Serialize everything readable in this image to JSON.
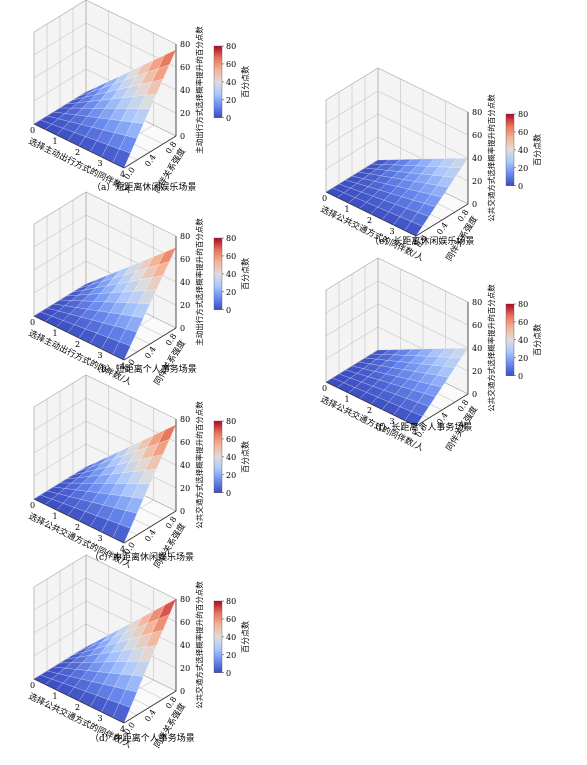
{
  "chart_data": [
    {
      "type": "surface",
      "caption": "（a）短距离休闲娱乐场景",
      "xlabel": "选择主动出行方式的同伴数/人",
      "ylabel": "同伴关系强度",
      "zlabel": "主动出行方式选择概率提升的百分点数",
      "colorbar_label": "百分点数",
      "x_ticks": [
        "0",
        "1",
        "2",
        "3",
        "4"
      ],
      "y_ticks": [
        "0.0",
        "0.4",
        "0.8"
      ],
      "z_ticks": [
        "0",
        "20",
        "40",
        "60",
        "80"
      ],
      "colorbar_ticks": [
        "0",
        "20",
        "40",
        "60",
        "80"
      ],
      "xlim": [
        0,
        4
      ],
      "ylim": [
        0,
        1
      ],
      "zlim": [
        0,
        80
      ],
      "max_value": 75,
      "colormap": [
        "#3b4cc0",
        "#6a8bef",
        "#aac7fd",
        "#dddddd",
        "#f6b396",
        "#e7745b",
        "#b40426"
      ]
    },
    {
      "type": "surface",
      "caption": "（b）短距离个人事务场景",
      "xlabel": "选择主动出行方式的同伴数/人",
      "ylabel": "同伴关系强度",
      "zlabel": "主动出行方式选择概率提升的百分点数",
      "colorbar_label": "百分点数",
      "x_ticks": [
        "0",
        "1",
        "2",
        "3",
        "4"
      ],
      "y_ticks": [
        "0.0",
        "0.4",
        "0.8"
      ],
      "z_ticks": [
        "0",
        "20",
        "40",
        "60",
        "80"
      ],
      "colorbar_ticks": [
        "0",
        "20",
        "40",
        "60",
        "80"
      ],
      "xlim": [
        0,
        4
      ],
      "ylim": [
        0,
        1
      ],
      "zlim": [
        0,
        80
      ],
      "max_value": 70,
      "colormap": [
        "#3b4cc0",
        "#6a8bef",
        "#aac7fd",
        "#dddddd",
        "#f6b396",
        "#e7745b",
        "#b40426"
      ]
    },
    {
      "type": "surface",
      "caption": "（c）中距离休闲娱乐场景",
      "xlabel": "选择公共交通方式的同伴数/人",
      "ylabel": "同伴关系强度",
      "zlabel": "公共交通方式选择概率提升的百分点数",
      "colorbar_label": "百分点数",
      "x_ticks": [
        "0",
        "1",
        "2",
        "3",
        "4"
      ],
      "y_ticks": [
        "0.0",
        "0.4",
        "0.8"
      ],
      "z_ticks": [
        "0",
        "20",
        "40",
        "60",
        "80"
      ],
      "colorbar_ticks": [
        "0",
        "20",
        "40",
        "60",
        "80"
      ],
      "xlim": [
        0,
        4
      ],
      "ylim": [
        0,
        1
      ],
      "zlim": [
        0,
        80
      ],
      "max_value": 75,
      "colormap": [
        "#3b4cc0",
        "#6a8bef",
        "#aac7fd",
        "#dddddd",
        "#f6b396",
        "#e7745b",
        "#b40426"
      ]
    },
    {
      "type": "surface",
      "caption": "（d）中距离个人事务场景",
      "xlabel": "选择公共交通方式的同伴数/人",
      "ylabel": "同伴关系强度",
      "zlabel": "公共交通方式选择概率提升的百分点数",
      "colorbar_label": "百分点数",
      "x_ticks": [
        "0",
        "1",
        "2",
        "3",
        "4"
      ],
      "y_ticks": [
        "0.0",
        "0.4",
        "0.8"
      ],
      "z_ticks": [
        "0",
        "20",
        "40",
        "60",
        "80"
      ],
      "colorbar_ticks": [
        "0",
        "20",
        "40",
        "60",
        "80"
      ],
      "xlim": [
        0,
        4
      ],
      "ylim": [
        0,
        1
      ],
      "zlim": [
        0,
        80
      ],
      "max_value": 80,
      "colormap": [
        "#3b4cc0",
        "#6a8bef",
        "#aac7fd",
        "#dddddd",
        "#f6b396",
        "#e7745b",
        "#b40426"
      ]
    },
    {
      "type": "surface",
      "caption": "（e）长距离休闲娱乐场景",
      "xlabel": "选择公共交通方式的同伴数/人",
      "ylabel": "同伴关系强度",
      "zlabel": "公共交通方式选择概率提升的百分点数",
      "colorbar_label": "百分点数",
      "x_ticks": [
        "0",
        "1",
        "2",
        "3",
        "4"
      ],
      "y_ticks": [
        "0.0",
        "0.4",
        "0.8"
      ],
      "z_ticks": [
        "0",
        "20",
        "40",
        "60",
        "80"
      ],
      "colorbar_ticks": [
        "0",
        "20",
        "40",
        "60",
        "80"
      ],
      "xlim": [
        0,
        4
      ],
      "ylim": [
        0,
        1
      ],
      "zlim": [
        0,
        80
      ],
      "max_value": 40,
      "colormap": [
        "#3b4cc0",
        "#6a8bef",
        "#aac7fd",
        "#dddddd",
        "#f6b396",
        "#e7745b",
        "#b40426"
      ]
    },
    {
      "type": "surface",
      "caption": "（f）长距离个人事务场景",
      "xlabel": "选择公共交通方式的同伴数/人",
      "ylabel": "同伴关系强度",
      "zlabel": "公共交通方式选择概率提升的百分点数",
      "colorbar_label": "百分点数",
      "x_ticks": [
        "0",
        "1",
        "2",
        "3",
        "4"
      ],
      "y_ticks": [
        "0.0",
        "0.4",
        "0.8"
      ],
      "z_ticks": [
        "0",
        "20",
        "40",
        "60",
        "80"
      ],
      "colorbar_ticks": [
        "0",
        "20",
        "40",
        "60",
        "80"
      ],
      "xlim": [
        0,
        4
      ],
      "ylim": [
        0,
        1
      ],
      "zlim": [
        0,
        80
      ],
      "max_value": 40,
      "colormap": [
        "#3b4cc0",
        "#6a8bef",
        "#aac7fd",
        "#dddddd",
        "#f6b396",
        "#e7745b",
        "#b40426"
      ]
    }
  ]
}
